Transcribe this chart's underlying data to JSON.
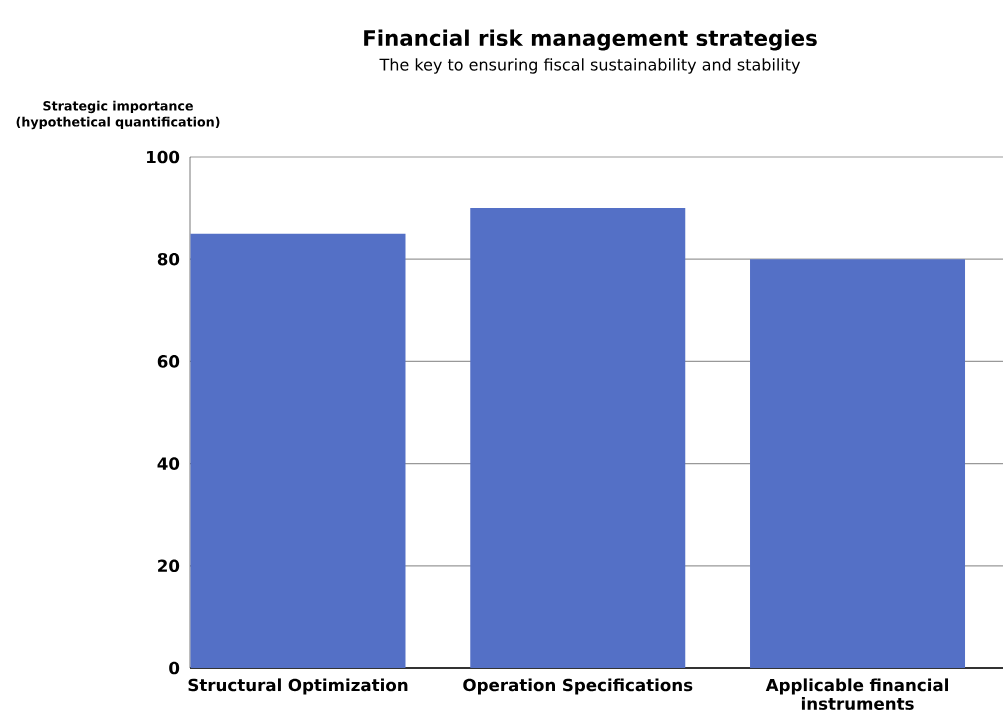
{
  "chart_data": {
    "type": "bar",
    "title": "Financial risk management strategies",
    "subtitle": "The key to ensuring fiscal sustainability and stability",
    "ylabel": "Strategic importance (hypothetical quantification)",
    "categories": [
      "Structural Optimization",
      "Operation Specifications",
      "Applicable financial instruments"
    ],
    "values": [
      85,
      90,
      80
    ],
    "color": "#5470c6",
    "ylim": [
      0,
      100
    ],
    "yticks": [
      0,
      20,
      40,
      60,
      80,
      100
    ],
    "grid": "y"
  }
}
